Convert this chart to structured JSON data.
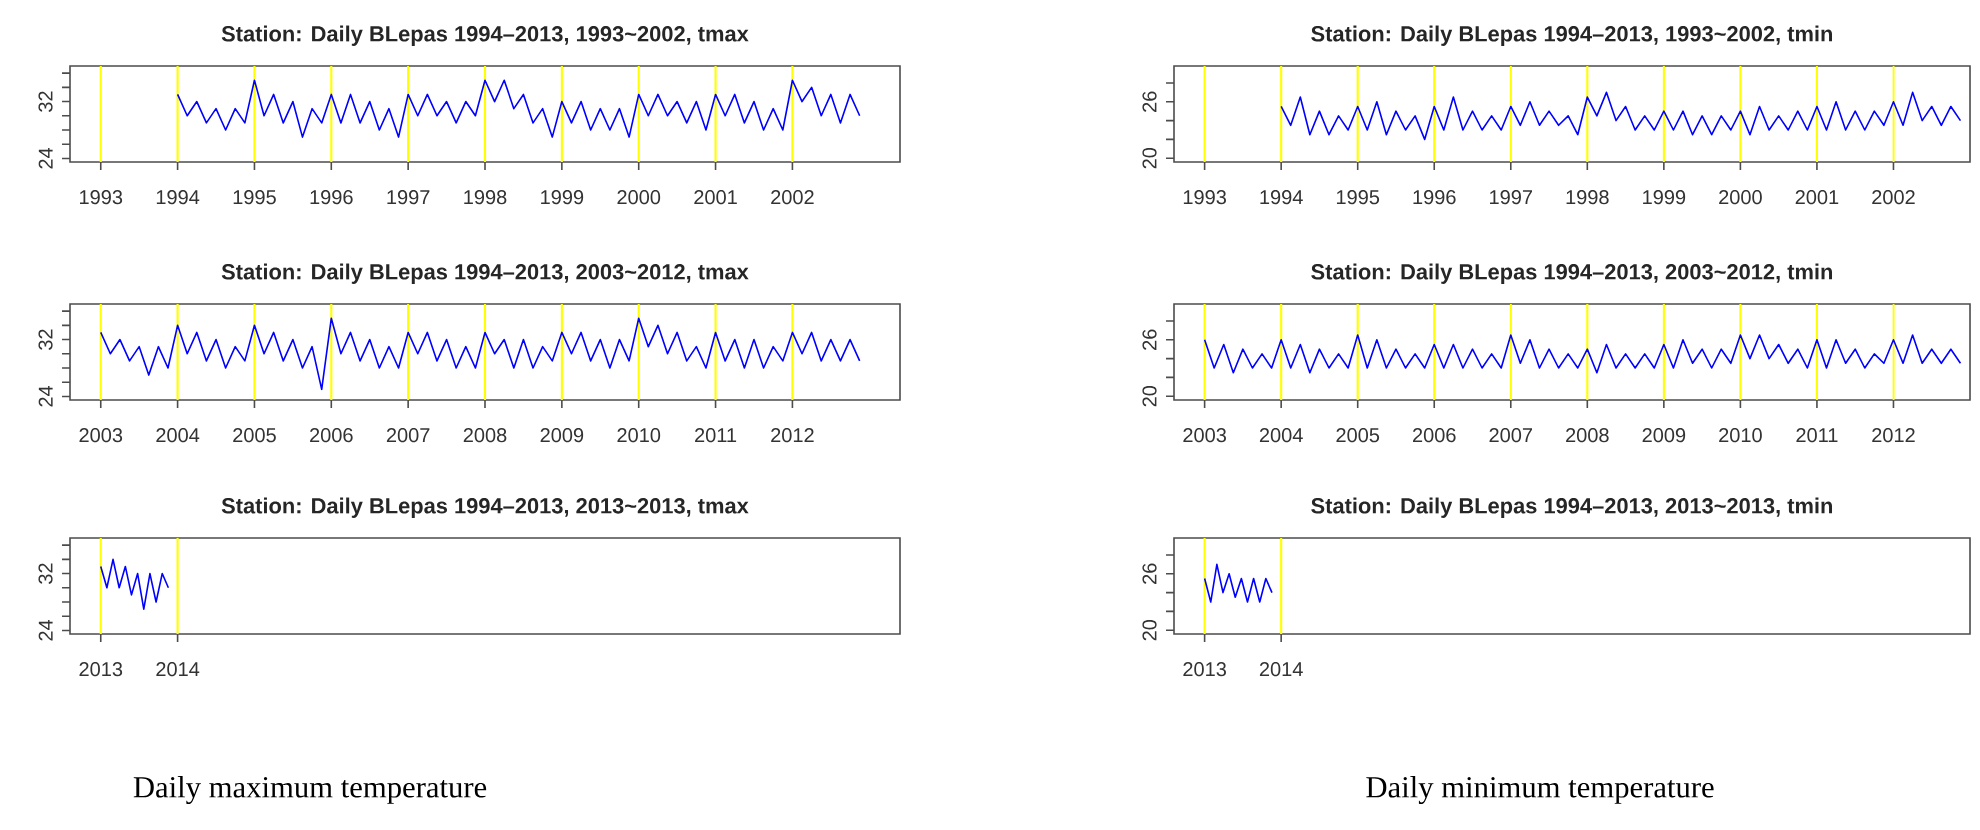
{
  "chart_data": [
    {
      "type": "line",
      "title": "Station: Daily BLepas 1994–2013, 1993~2002,  tmax",
      "xlim": [
        1992.6,
        2003.4
      ],
      "ylim": [
        23.5,
        37
      ],
      "xticks": [
        1993,
        1994,
        1995,
        1996,
        1997,
        1998,
        1999,
        2000,
        2001,
        2002
      ],
      "yticks": [
        24,
        {
          "value": 26,
          "label": null
        },
        {
          "value": 28,
          "label": null
        },
        {
          "value": 30,
          "label": null
        },
        32,
        {
          "value": 34,
          "label": null
        },
        {
          "value": 36,
          "label": null
        }
      ],
      "ref_lines": [
        {
          "axis": "x",
          "value": 1993,
          "color": "#ffff00"
        },
        {
          "axis": "x",
          "value": 1994,
          "color": "#ffff00"
        },
        {
          "axis": "x",
          "value": 1995,
          "color": "#ffff00"
        },
        {
          "axis": "x",
          "value": 1996,
          "color": "#ffff00"
        },
        {
          "axis": "x",
          "value": 1997,
          "color": "#ffff00"
        },
        {
          "axis": "x",
          "value": 1998,
          "color": "#ffff00"
        },
        {
          "axis": "x",
          "value": 1999,
          "color": "#ffff00"
        },
        {
          "axis": "x",
          "value": 2000,
          "color": "#ffff00"
        },
        {
          "axis": "x",
          "value": 2001,
          "color": "#ffff00"
        },
        {
          "axis": "x",
          "value": 2002,
          "color": "#ffff00"
        }
      ],
      "x": [
        1994,
        1994.125,
        1994.25,
        1994.375,
        1994.5,
        1994.625,
        1994.75,
        1994.875,
        1995,
        1995.125,
        1995.25,
        1995.375,
        1995.5,
        1995.625,
        1995.75,
        1995.875,
        1996,
        1996.125,
        1996.25,
        1996.375,
        1996.5,
        1996.625,
        1996.75,
        1996.875,
        1997,
        1997.125,
        1997.25,
        1997.375,
        1997.5,
        1997.625,
        1997.75,
        1997.875,
        1998,
        1998.125,
        1998.25,
        1998.375,
        1998.5,
        1998.625,
        1998.75,
        1998.875,
        1999,
        1999.125,
        1999.25,
        1999.375,
        1999.5,
        1999.625,
        1999.75,
        1999.875,
        2000,
        2000.125,
        2000.25,
        2000.375,
        2000.5,
        2000.625,
        2000.75,
        2000.875,
        2001,
        2001.125,
        2001.25,
        2001.375,
        2001.5,
        2001.625,
        2001.75,
        2001.875,
        2002,
        2002.125,
        2002.25,
        2002.375,
        2002.5,
        2002.625,
        2002.75,
        2002.875
      ],
      "series": [
        {
          "color": "#0000ff",
          "values": [
            33,
            30,
            32,
            29,
            31,
            28,
            31,
            29,
            35,
            30,
            33,
            29,
            32,
            27,
            31,
            29,
            33,
            29,
            33,
            29,
            32,
            28,
            31,
            27,
            33,
            30,
            33,
            30,
            32,
            29,
            32,
            30,
            35,
            32,
            35,
            31,
            33,
            29,
            31,
            27,
            32,
            29,
            32,
            28,
            31,
            28,
            31,
            27,
            33,
            30,
            33,
            30,
            32,
            29,
            32,
            28,
            33,
            30,
            33,
            29,
            32,
            28,
            31,
            28,
            35,
            32,
            34,
            30,
            33,
            29,
            33,
            30
          ]
        }
      ]
    },
    {
      "type": "line",
      "title": "Station: Daily BLepas 1994–2013, 2003~2012,  tmax",
      "xlim": [
        2002.6,
        2013.4
      ],
      "ylim": [
        23.5,
        37
      ],
      "xticks": [
        2003,
        2004,
        2005,
        2006,
        2007,
        2008,
        2009,
        2010,
        2011,
        2012
      ],
      "yticks": [
        24,
        {
          "value": 26,
          "label": null
        },
        {
          "value": 28,
          "label": null
        },
        {
          "value": 30,
          "label": null
        },
        32,
        {
          "value": 34,
          "label": null
        },
        {
          "value": 36,
          "label": null
        }
      ],
      "ref_lines": [
        {
          "axis": "x",
          "value": 2003,
          "color": "#ffff00"
        },
        {
          "axis": "x",
          "value": 2004,
          "color": "#ffff00"
        },
        {
          "axis": "x",
          "value": 2005,
          "color": "#ffff00"
        },
        {
          "axis": "x",
          "value": 2006,
          "color": "#ffff00"
        },
        {
          "axis": "x",
          "value": 2007,
          "color": "#ffff00"
        },
        {
          "axis": "x",
          "value": 2008,
          "color": "#ffff00"
        },
        {
          "axis": "x",
          "value": 2009,
          "color": "#ffff00"
        },
        {
          "axis": "x",
          "value": 2010,
          "color": "#ffff00"
        },
        {
          "axis": "x",
          "value": 2011,
          "color": "#ffff00"
        },
        {
          "axis": "x",
          "value": 2012,
          "color": "#ffff00"
        }
      ],
      "x": [
        2003,
        2003.125,
        2003.25,
        2003.375,
        2003.5,
        2003.625,
        2003.75,
        2003.875,
        2004,
        2004.125,
        2004.25,
        2004.375,
        2004.5,
        2004.625,
        2004.75,
        2004.875,
        2005,
        2005.125,
        2005.25,
        2005.375,
        2005.5,
        2005.625,
        2005.75,
        2005.875,
        2006,
        2006.125,
        2006.25,
        2006.375,
        2006.5,
        2006.625,
        2006.75,
        2006.875,
        2007,
        2007.125,
        2007.25,
        2007.375,
        2007.5,
        2007.625,
        2007.75,
        2007.875,
        2008,
        2008.125,
        2008.25,
        2008.375,
        2008.5,
        2008.625,
        2008.75,
        2008.875,
        2009,
        2009.125,
        2009.25,
        2009.375,
        2009.5,
        2009.625,
        2009.75,
        2009.875,
        2010,
        2010.125,
        2010.25,
        2010.375,
        2010.5,
        2010.625,
        2010.75,
        2010.875,
        2011,
        2011.125,
        2011.25,
        2011.375,
        2011.5,
        2011.625,
        2011.75,
        2011.875,
        2012,
        2012.125,
        2012.25,
        2012.375,
        2012.5,
        2012.625,
        2012.75,
        2012.875
      ],
      "series": [
        {
          "color": "#0000ff",
          "values": [
            33,
            30,
            32,
            29,
            31,
            27,
            31,
            28,
            34,
            30,
            33,
            29,
            32,
            28,
            31,
            29,
            34,
            30,
            33,
            29,
            32,
            28,
            31,
            25,
            35,
            30,
            33,
            29,
            32,
            28,
            31,
            28,
            33,
            30,
            33,
            29,
            32,
            28,
            31,
            28,
            33,
            30,
            32,
            28,
            32,
            28,
            31,
            29,
            33,
            30,
            33,
            29,
            32,
            28,
            32,
            29,
            35,
            31,
            34,
            30,
            33,
            29,
            31,
            28,
            33,
            29,
            32,
            28,
            32,
            28,
            31,
            29,
            33,
            30,
            33,
            29,
            32,
            29,
            32,
            29
          ]
        }
      ]
    },
    {
      "type": "line",
      "title": "Station: Daily BLepas 1994–2013, 2013~2013,  tmax",
      "xlim": [
        2012.6,
        2023.4
      ],
      "ylim": [
        23.5,
        37
      ],
      "xticks": [
        2013,
        2014
      ],
      "yticks": [
        24,
        {
          "value": 26,
          "label": null
        },
        {
          "value": 28,
          "label": null
        },
        {
          "value": 30,
          "label": null
        },
        32,
        {
          "value": 34,
          "label": null
        },
        {
          "value": 36,
          "label": null
        }
      ],
      "ref_lines": [
        {
          "axis": "x",
          "value": 2013,
          "color": "#ffff00"
        },
        {
          "axis": "x",
          "value": 2014,
          "color": "#ffff00"
        }
      ],
      "x": [
        2013,
        2013.08,
        2013.16,
        2013.24,
        2013.32,
        2013.4,
        2013.48,
        2013.56,
        2013.64,
        2013.72,
        2013.8,
        2013.88
      ],
      "series": [
        {
          "color": "#0000ff",
          "values": [
            33,
            30,
            34,
            30,
            33,
            29,
            32,
            27,
            32,
            28,
            32,
            30
          ]
        }
      ],
      "annotations": [
        "Daily maximum temperature"
      ]
    },
    {
      "type": "line",
      "title": "Station: Daily BLepas 1994–2013, 1993~2002,  tmin",
      "xlim": [
        1992.6,
        2003.0
      ],
      "ylim": [
        19.6,
        29.8
      ],
      "xticks": [
        1993,
        1994,
        1995,
        1996,
        1997,
        1998,
        1999,
        2000,
        2001,
        2002
      ],
      "yticks": [
        20,
        {
          "value": 22,
          "label": null
        },
        {
          "value": 24,
          "label": null
        },
        26,
        {
          "value": 28,
          "label": null
        }
      ],
      "ref_lines": [
        {
          "axis": "x",
          "value": 1993,
          "color": "#ffff00"
        },
        {
          "axis": "x",
          "value": 1994,
          "color": "#ffff00"
        },
        {
          "axis": "x",
          "value": 1995,
          "color": "#ffff00"
        },
        {
          "axis": "x",
          "value": 1996,
          "color": "#ffff00"
        },
        {
          "axis": "x",
          "value": 1997,
          "color": "#ffff00"
        },
        {
          "axis": "x",
          "value": 1998,
          "color": "#ffff00"
        },
        {
          "axis": "x",
          "value": 1999,
          "color": "#ffff00"
        },
        {
          "axis": "x",
          "value": 2000,
          "color": "#ffff00"
        },
        {
          "axis": "x",
          "value": 2001,
          "color": "#ffff00"
        },
        {
          "axis": "x",
          "value": 2002,
          "color": "#ffff00"
        }
      ],
      "x": [
        1994,
        1994.125,
        1994.25,
        1994.375,
        1994.5,
        1994.625,
        1994.75,
        1994.875,
        1995,
        1995.125,
        1995.25,
        1995.375,
        1995.5,
        1995.625,
        1995.75,
        1995.875,
        1996,
        1996.125,
        1996.25,
        1996.375,
        1996.5,
        1996.625,
        1996.75,
        1996.875,
        1997,
        1997.125,
        1997.25,
        1997.375,
        1997.5,
        1997.625,
        1997.75,
        1997.875,
        1998,
        1998.125,
        1998.25,
        1998.375,
        1998.5,
        1998.625,
        1998.75,
        1998.875,
        1999,
        1999.125,
        1999.25,
        1999.375,
        1999.5,
        1999.625,
        1999.75,
        1999.875,
        2000,
        2000.125,
        2000.25,
        2000.375,
        2000.5,
        2000.625,
        2000.75,
        2000.875,
        2001,
        2001.125,
        2001.25,
        2001.375,
        2001.5,
        2001.625,
        2001.75,
        2001.875,
        2002,
        2002.125,
        2002.25,
        2002.375,
        2002.5,
        2002.625,
        2002.75,
        2002.875
      ],
      "series": [
        {
          "color": "#0000ff",
          "values": [
            25.5,
            23.5,
            26.5,
            22.5,
            25,
            22.5,
            24.5,
            23,
            25.5,
            23,
            26,
            22.5,
            25,
            23,
            24.5,
            22,
            25.5,
            23,
            26.5,
            23,
            25,
            23,
            24.5,
            23,
            25.5,
            23.5,
            26,
            23.5,
            25,
            23.5,
            24.5,
            22.5,
            26.5,
            24.5,
            27,
            24,
            25.5,
            23,
            24.5,
            23,
            25,
            23,
            25,
            22.5,
            24.5,
            22.5,
            24.5,
            23,
            25,
            22.5,
            25.5,
            23,
            24.5,
            23,
            25,
            23,
            25.5,
            23,
            26,
            23,
            25,
            23,
            25,
            23.5,
            26,
            23.5,
            27,
            24,
            25.5,
            23.5,
            25.5,
            24
          ]
        }
      ]
    },
    {
      "type": "line",
      "title": "Station: Daily BLepas 1994–2013, 2003~2012,  tmin",
      "xlim": [
        2002.6,
        2013.0
      ],
      "ylim": [
        19.6,
        29.8
      ],
      "xticks": [
        2003,
        2004,
        2005,
        2006,
        2007,
        2008,
        2009,
        2010,
        2011,
        2012
      ],
      "yticks": [
        20,
        {
          "value": 22,
          "label": null
        },
        {
          "value": 24,
          "label": null
        },
        26,
        {
          "value": 28,
          "label": null
        }
      ],
      "ref_lines": [
        {
          "axis": "x",
          "value": 2003,
          "color": "#ffff00"
        },
        {
          "axis": "x",
          "value": 2004,
          "color": "#ffff00"
        },
        {
          "axis": "x",
          "value": 2005,
          "color": "#ffff00"
        },
        {
          "axis": "x",
          "value": 2006,
          "color": "#ffff00"
        },
        {
          "axis": "x",
          "value": 2007,
          "color": "#ffff00"
        },
        {
          "axis": "x",
          "value": 2008,
          "color": "#ffff00"
        },
        {
          "axis": "x",
          "value": 2009,
          "color": "#ffff00"
        },
        {
          "axis": "x",
          "value": 2010,
          "color": "#ffff00"
        },
        {
          "axis": "x",
          "value": 2011,
          "color": "#ffff00"
        },
        {
          "axis": "x",
          "value": 2012,
          "color": "#ffff00"
        }
      ],
      "x": [
        2003,
        2003.125,
        2003.25,
        2003.375,
        2003.5,
        2003.625,
        2003.75,
        2003.875,
        2004,
        2004.125,
        2004.25,
        2004.375,
        2004.5,
        2004.625,
        2004.75,
        2004.875,
        2005,
        2005.125,
        2005.25,
        2005.375,
        2005.5,
        2005.625,
        2005.75,
        2005.875,
        2006,
        2006.125,
        2006.25,
        2006.375,
        2006.5,
        2006.625,
        2006.75,
        2006.875,
        2007,
        2007.125,
        2007.25,
        2007.375,
        2007.5,
        2007.625,
        2007.75,
        2007.875,
        2008,
        2008.125,
        2008.25,
        2008.375,
        2008.5,
        2008.625,
        2008.75,
        2008.875,
        2009,
        2009.125,
        2009.25,
        2009.375,
        2009.5,
        2009.625,
        2009.75,
        2009.875,
        2010,
        2010.125,
        2010.25,
        2010.375,
        2010.5,
        2010.625,
        2010.75,
        2010.875,
        2011,
        2011.125,
        2011.25,
        2011.375,
        2011.5,
        2011.625,
        2011.75,
        2011.875,
        2012,
        2012.125,
        2012.25,
        2012.375,
        2012.5,
        2012.625,
        2012.75,
        2012.875
      ],
      "series": [
        {
          "color": "#0000ff",
          "values": [
            26,
            23,
            25.5,
            22.5,
            25,
            23,
            24.5,
            23,
            26,
            23,
            25.5,
            22.5,
            25,
            23,
            24.5,
            23,
            26.5,
            23,
            26,
            23,
            25,
            23,
            24.5,
            23,
            25.5,
            23,
            25.5,
            23,
            25,
            23,
            24.5,
            23,
            26.5,
            23.5,
            26,
            23,
            25,
            23,
            24.5,
            23,
            25,
            22.5,
            25.5,
            23,
            24.5,
            23,
            24.5,
            23,
            25.5,
            23,
            26,
            23.5,
            25,
            23,
            25,
            23.5,
            26.5,
            24,
            26.5,
            24,
            25.5,
            23.5,
            25,
            23,
            26,
            23,
            26,
            23.5,
            25,
            23,
            24.5,
            23.5,
            26,
            23.5,
            26.5,
            23.5,
            25,
            23.5,
            25,
            23.5
          ]
        }
      ]
    },
    {
      "type": "line",
      "title": "Station: Daily BLepas 1994–2013, 2013~2013,  tmin",
      "xlim": [
        2012.6,
        2023.0
      ],
      "ylim": [
        19.6,
        29.8
      ],
      "xticks": [
        2013,
        2014
      ],
      "yticks": [
        20,
        {
          "value": 22,
          "label": null
        },
        {
          "value": 24,
          "label": null
        },
        26,
        {
          "value": 28,
          "label": null
        }
      ],
      "ref_lines": [
        {
          "axis": "x",
          "value": 2013,
          "color": "#ffff00"
        },
        {
          "axis": "x",
          "value": 2014,
          "color": "#ffff00"
        }
      ],
      "x": [
        2013,
        2013.08,
        2013.16,
        2013.24,
        2013.32,
        2013.4,
        2013.48,
        2013.56,
        2013.64,
        2013.72,
        2013.8,
        2013.88
      ],
      "series": [
        {
          "color": "#0000ff",
          "values": [
            25.5,
            23,
            27,
            24,
            26,
            23.5,
            25.5,
            23,
            25.5,
            23,
            25.5,
            24
          ]
        }
      ],
      "annotations": [
        "Daily minimum temperature"
      ]
    }
  ]
}
